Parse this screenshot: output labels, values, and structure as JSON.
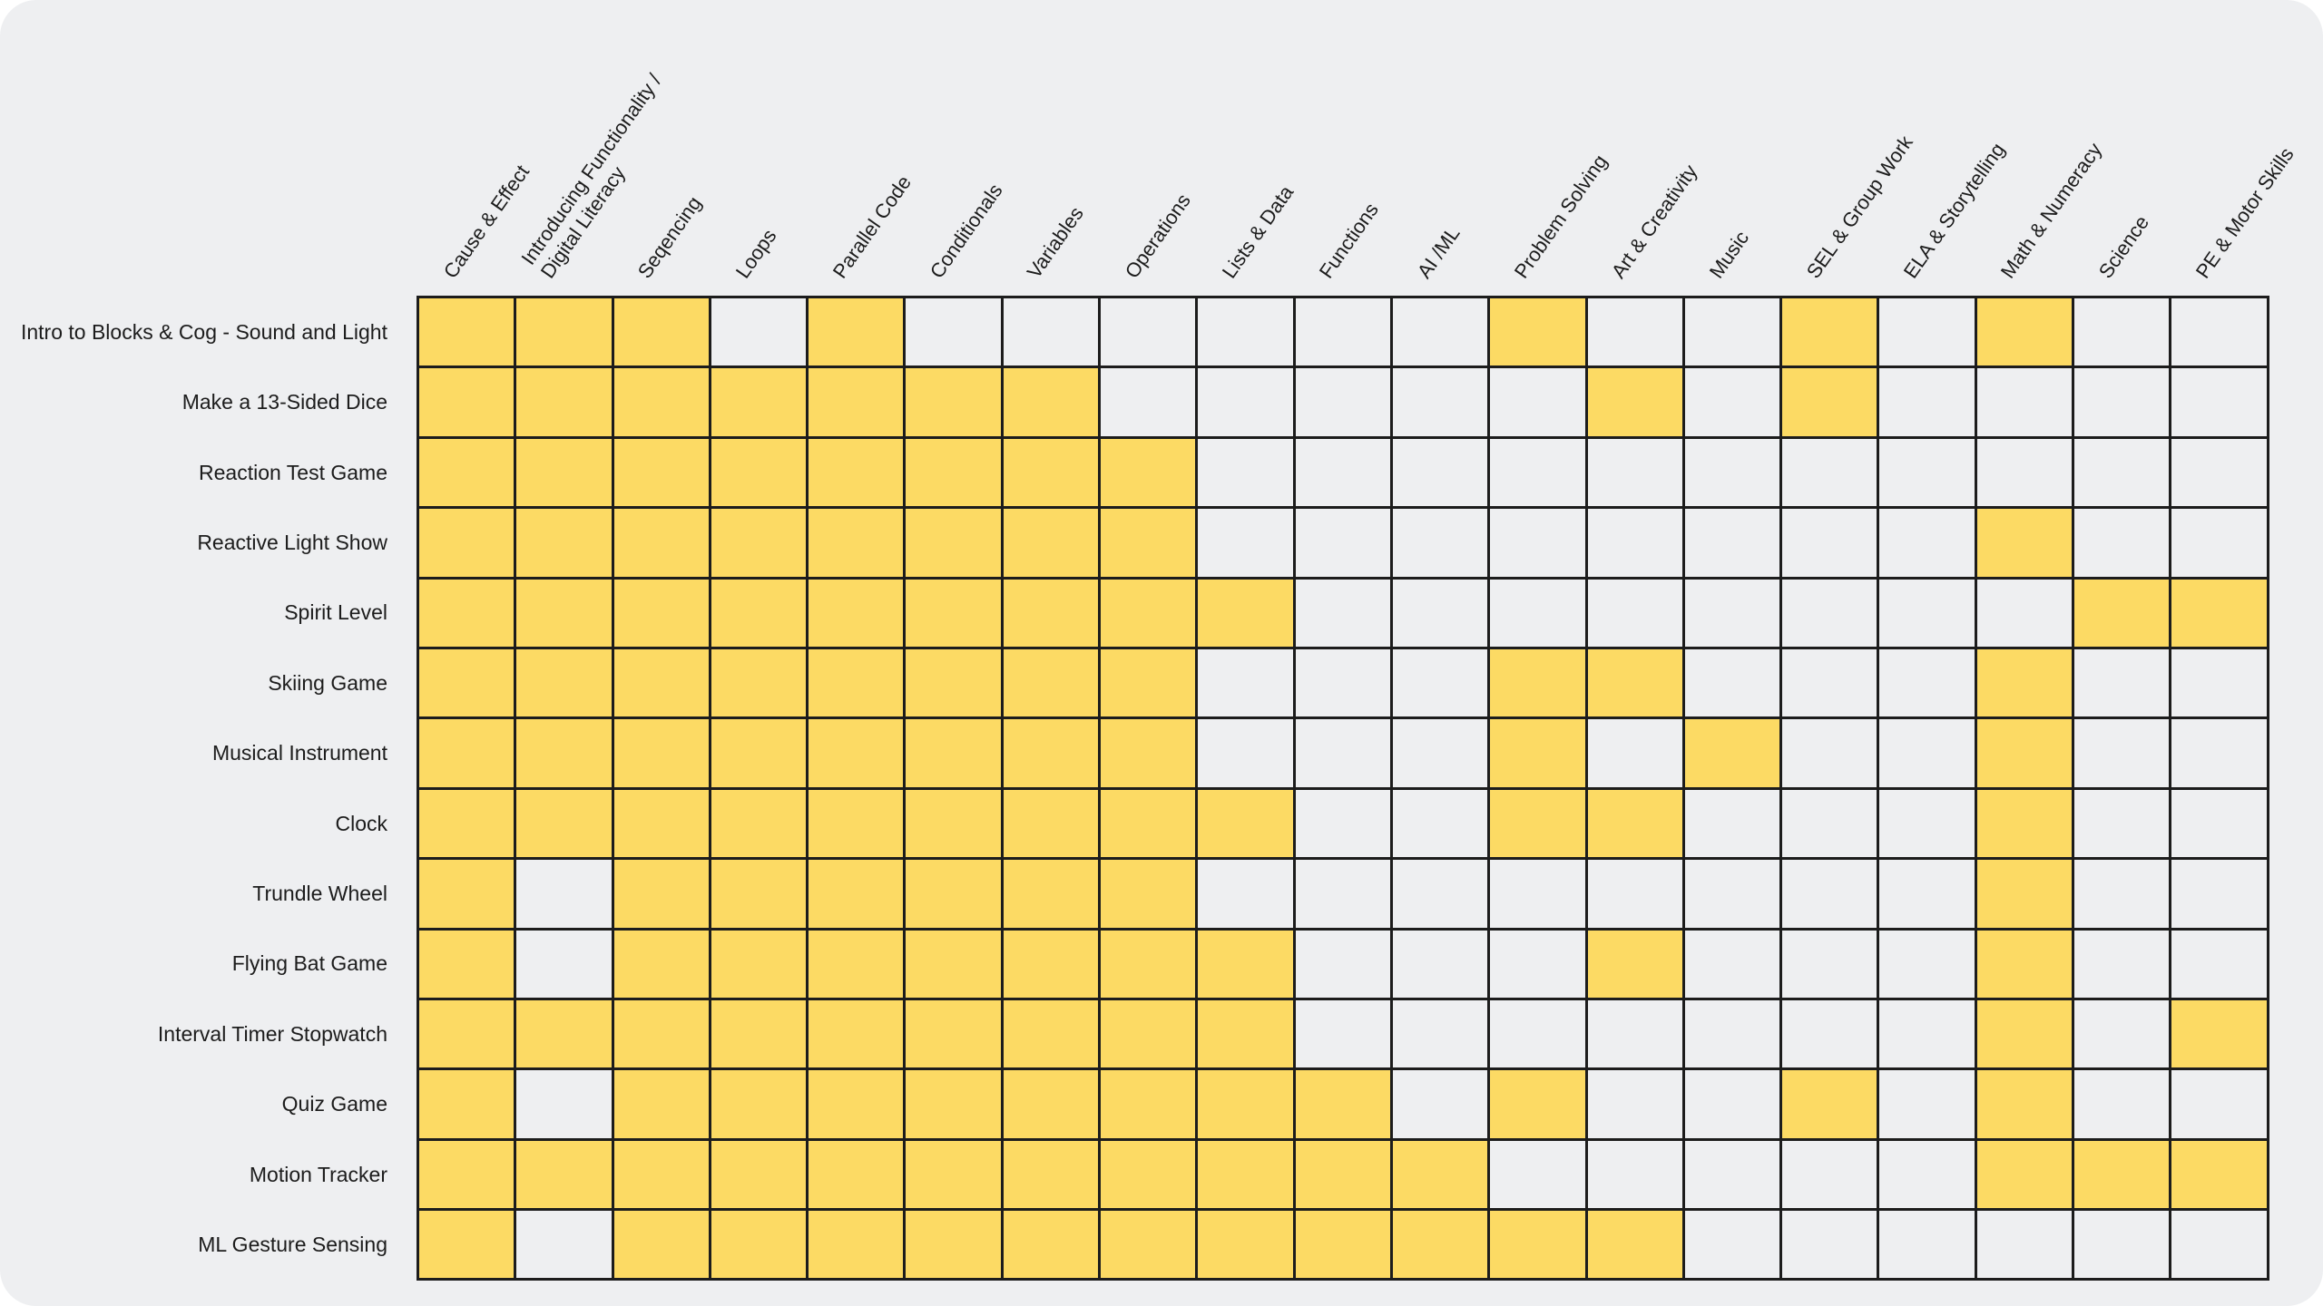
{
  "matrix": {
    "columns": [
      "Cause & Effect",
      "Introducing Functionality /\nDigital Literacy",
      "Seqencing",
      "Loops",
      "Parallel Code",
      "Conditionals",
      "Variables",
      "Operations",
      "Lists & Data",
      "Functions",
      "AI /ML",
      "Problem Solving",
      "Art & Creativity",
      "Music",
      "SEL & Group Work",
      "ELA & Storytelling",
      "Math & Numeracy",
      "Science",
      "PE & Motor Skills"
    ],
    "rows": [
      {
        "label": "Intro to Blocks & Cog - Sound and Light",
        "cells": [
          1,
          1,
          1,
          0,
          1,
          0,
          0,
          0,
          0,
          0,
          0,
          1,
          0,
          0,
          1,
          0,
          1,
          0,
          0
        ]
      },
      {
        "label": "Make a 13-Sided Dice",
        "cells": [
          1,
          1,
          1,
          1,
          1,
          1,
          1,
          0,
          0,
          0,
          0,
          0,
          1,
          0,
          1,
          0,
          0,
          0,
          0
        ]
      },
      {
        "label": "Reaction Test Game",
        "cells": [
          1,
          1,
          1,
          1,
          1,
          1,
          1,
          1,
          0,
          0,
          0,
          0,
          0,
          0,
          0,
          0,
          0,
          0,
          0
        ]
      },
      {
        "label": "Reactive Light Show",
        "cells": [
          1,
          1,
          1,
          1,
          1,
          1,
          1,
          1,
          0,
          0,
          0,
          0,
          0,
          0,
          0,
          0,
          1,
          0,
          0
        ]
      },
      {
        "label": "Spirit Level",
        "cells": [
          1,
          1,
          1,
          1,
          1,
          1,
          1,
          1,
          1,
          0,
          0,
          0,
          0,
          0,
          0,
          0,
          0,
          1,
          1
        ]
      },
      {
        "label": "Skiing Game",
        "cells": [
          1,
          1,
          1,
          1,
          1,
          1,
          1,
          1,
          0,
          0,
          0,
          1,
          1,
          0,
          0,
          0,
          1,
          0,
          0
        ]
      },
      {
        "label": "Musical Instrument",
        "cells": [
          1,
          1,
          1,
          1,
          1,
          1,
          1,
          1,
          0,
          0,
          0,
          1,
          0,
          1,
          0,
          0,
          1,
          0,
          0
        ]
      },
      {
        "label": "Clock",
        "cells": [
          1,
          1,
          1,
          1,
          1,
          1,
          1,
          1,
          1,
          0,
          0,
          1,
          1,
          0,
          0,
          0,
          1,
          0,
          0
        ]
      },
      {
        "label": "Trundle Wheel",
        "cells": [
          1,
          0,
          1,
          1,
          1,
          1,
          1,
          1,
          0,
          0,
          0,
          0,
          0,
          0,
          0,
          0,
          1,
          0,
          0
        ]
      },
      {
        "label": "Flying Bat Game",
        "cells": [
          1,
          0,
          1,
          1,
          1,
          1,
          1,
          1,
          1,
          0,
          0,
          0,
          1,
          0,
          0,
          0,
          1,
          0,
          0
        ]
      },
      {
        "label": "Interval Timer Stopwatch",
        "cells": [
          1,
          1,
          1,
          1,
          1,
          1,
          1,
          1,
          1,
          0,
          0,
          0,
          0,
          0,
          0,
          0,
          1,
          0,
          1
        ]
      },
      {
        "label": "Quiz Game",
        "cells": [
          1,
          0,
          1,
          1,
          1,
          1,
          1,
          1,
          1,
          1,
          0,
          1,
          0,
          0,
          1,
          0,
          1,
          0,
          0
        ]
      },
      {
        "label": "Motion Tracker",
        "cells": [
          1,
          1,
          1,
          1,
          1,
          1,
          1,
          1,
          1,
          1,
          1,
          0,
          0,
          0,
          0,
          0,
          1,
          1,
          1
        ]
      },
      {
        "label": "ML Gesture Sensing",
        "cells": [
          1,
          0,
          1,
          1,
          1,
          1,
          1,
          1,
          1,
          1,
          1,
          1,
          1,
          0,
          0,
          0,
          0,
          0,
          0
        ]
      }
    ]
  },
  "colors": {
    "filled": "#fcda64",
    "empty": "#eeeff1",
    "line": "#1c1c1c"
  }
}
